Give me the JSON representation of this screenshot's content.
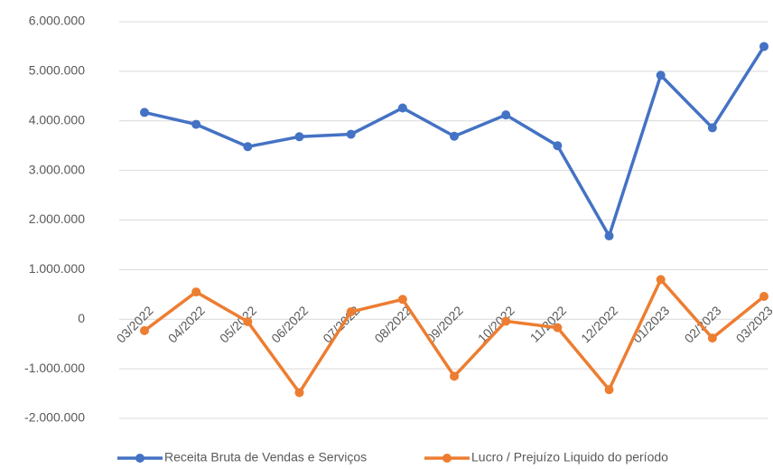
{
  "chart_data": {
    "type": "line",
    "categories": [
      "03/2022",
      "04/2022",
      "05/2022",
      "06/2022",
      "07/2022",
      "08/2022",
      "09/2022",
      "10/2022",
      "11/2022",
      "12/2022",
      "01/2023",
      "02/2023",
      "03/2023"
    ],
    "series": [
      {
        "name": "Receita Bruta de Vendas e Serviços",
        "color": "#4472c4",
        "values": [
          4170000,
          3930000,
          3480000,
          3680000,
          3730000,
          4260000,
          3690000,
          4120000,
          3500000,
          1680000,
          4920000,
          3860000,
          5500000
        ]
      },
      {
        "name": "Lucro / Prejuízo Liquido do período",
        "color": "#ed7d31",
        "values": [
          -230000,
          550000,
          -50000,
          -1480000,
          150000,
          400000,
          -1150000,
          -40000,
          -170000,
          -1420000,
          800000,
          -380000,
          460000
        ]
      }
    ],
    "ylim": [
      -2000000,
      6000000
    ],
    "yticks": [
      {
        "value": -2000000,
        "label": "-2.000.000"
      },
      {
        "value": -1000000,
        "label": "-1.000.000"
      },
      0,
      {
        "value": 1000000,
        "label": "1.000.000"
      },
      {
        "value": 2000000,
        "label": "2.000.000"
      },
      {
        "value": 3000000,
        "label": "3.000.000"
      },
      {
        "value": 4000000,
        "label": "4.000.000"
      },
      {
        "value": 5000000,
        "label": "5.000.000"
      },
      {
        "value": 6000000,
        "label": "6.000.000"
      }
    ],
    "grid": true,
    "legend": "bottom"
  }
}
